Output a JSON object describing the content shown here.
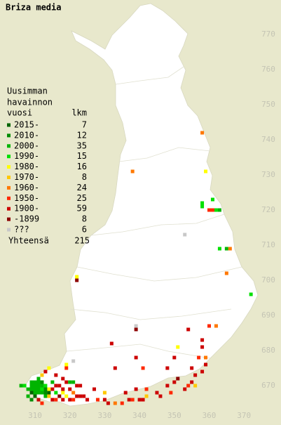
{
  "title": "Briza media",
  "legend": {
    "heading": [
      "Uusimman",
      "havainnon",
      "vuosi"
    ],
    "count_heading": "lkm",
    "entries": [
      {
        "label": "2015-",
        "count": 7,
        "color": "#006400"
      },
      {
        "label": "2010-",
        "count": 12,
        "color": "#008c00"
      },
      {
        "label": "2000-",
        "count": 35,
        "color": "#00b400"
      },
      {
        "label": "1990-",
        "count": 15,
        "color": "#00e000"
      },
      {
        "label": "1980-",
        "count": 16,
        "color": "#ffff00"
      },
      {
        "label": "1970-",
        "count": 8,
        "color": "#ffc800"
      },
      {
        "label": "1960-",
        "count": 24,
        "color": "#ff7800"
      },
      {
        "label": "1950-",
        "count": 25,
        "color": "#ff2800"
      },
      {
        "label": "1900-",
        "count": 59,
        "color": "#cc0000"
      },
      {
        "label": "-1899",
        "count": 8,
        "color": "#8c0000"
      },
      {
        "label": "???",
        "count": 6,
        "color": "#c8c8c8"
      }
    ],
    "total_label": "Yhteensä",
    "total": 215
  },
  "axes": {
    "x_ticks": [
      310,
      320,
      330,
      340,
      350,
      360,
      370
    ],
    "y_ticks": [
      670,
      680,
      690,
      700,
      710,
      720,
      730,
      740,
      750,
      760,
      770
    ]
  },
  "squares": [
    [
      358,
      742,
      6
    ],
    [
      338,
      731,
      6
    ],
    [
      359,
      731,
      4
    ],
    [
      361,
      723,
      3
    ],
    [
      358,
      722,
      3
    ],
    [
      358,
      721,
      3
    ],
    [
      360,
      720,
      7
    ],
    [
      361,
      720,
      7
    ],
    [
      362,
      720,
      3
    ],
    [
      363,
      720,
      2
    ],
    [
      353,
      713,
      10
    ],
    [
      363,
      709,
      3
    ],
    [
      365,
      709,
      2
    ],
    [
      366,
      709,
      6
    ],
    [
      365,
      702,
      6
    ],
    [
      372,
      696,
      3
    ],
    [
      322,
      701,
      4
    ],
    [
      322,
      700,
      9
    ],
    [
      339,
      687,
      10
    ],
    [
      339,
      686,
      9
    ],
    [
      354,
      686,
      8
    ],
    [
      360,
      687,
      7
    ],
    [
      362,
      687,
      6
    ],
    [
      358,
      683,
      8
    ],
    [
      358,
      681,
      8
    ],
    [
      332,
      682,
      8
    ],
    [
      351,
      681,
      4
    ],
    [
      339,
      678,
      8
    ],
    [
      341,
      675,
      7
    ],
    [
      350,
      678,
      8
    ],
    [
      357,
      678,
      7
    ],
    [
      359,
      678,
      6
    ],
    [
      348,
      675,
      8
    ],
    [
      355,
      675,
      8
    ],
    [
      333,
      675,
      8
    ],
    [
      321,
      677,
      10
    ],
    [
      319,
      676,
      4
    ],
    [
      319,
      675,
      7
    ],
    [
      309,
      671,
      2
    ],
    [
      310,
      671,
      2
    ],
    [
      311,
      671,
      2
    ],
    [
      309,
      670,
      2
    ],
    [
      310,
      670,
      2
    ],
    [
      311,
      670,
      2
    ],
    [
      312,
      670,
      2
    ],
    [
      308,
      669,
      2
    ],
    [
      309,
      669,
      2
    ],
    [
      310,
      669,
      2
    ],
    [
      311,
      669,
      2
    ],
    [
      312,
      669,
      3
    ],
    [
      310,
      668,
      2
    ],
    [
      311,
      668,
      2
    ],
    [
      312,
      668,
      2
    ],
    [
      313,
      668,
      1
    ],
    [
      307,
      670,
      3
    ],
    [
      306,
      670,
      2
    ],
    [
      313,
      670,
      3
    ],
    [
      314,
      669,
      4
    ],
    [
      315,
      669,
      8
    ],
    [
      316,
      670,
      8
    ],
    [
      317,
      670,
      8
    ],
    [
      318,
      669,
      8
    ],
    [
      320,
      669,
      8
    ],
    [
      322,
      670,
      8
    ],
    [
      323,
      670,
      8
    ],
    [
      313,
      667,
      2
    ],
    [
      314,
      667,
      5
    ],
    [
      315,
      666,
      8
    ],
    [
      316,
      666,
      7
    ],
    [
      318,
      666,
      8
    ],
    [
      320,
      666,
      8
    ],
    [
      321,
      666,
      7
    ],
    [
      322,
      667,
      8
    ],
    [
      323,
      667,
      8
    ],
    [
      324,
      667,
      8
    ],
    [
      319,
      667,
      4
    ],
    [
      325,
      666,
      8
    ],
    [
      328,
      666,
      7
    ],
    [
      330,
      666,
      8
    ],
    [
      331,
      665,
      8
    ],
    [
      333,
      665,
      6
    ],
    [
      335,
      665,
      7
    ],
    [
      337,
      666,
      8
    ],
    [
      338,
      666,
      7
    ],
    [
      340,
      666,
      8
    ],
    [
      341,
      666,
      8
    ],
    [
      342,
      667,
      5
    ],
    [
      345,
      668,
      8
    ],
    [
      346,
      667,
      8
    ],
    [
      349,
      668,
      7
    ],
    [
      353,
      669,
      8
    ],
    [
      354,
      670,
      7
    ],
    [
      356,
      670,
      5
    ],
    [
      311,
      672,
      2
    ],
    [
      312,
      673,
      5
    ],
    [
      313,
      674,
      8
    ],
    [
      314,
      675,
      4
    ],
    [
      318,
      672,
      8
    ],
    [
      319,
      671,
      8
    ],
    [
      320,
      671,
      2
    ],
    [
      321,
      671,
      2
    ],
    [
      316,
      673,
      8
    ],
    [
      327,
      669,
      8
    ],
    [
      330,
      668,
      5
    ],
    [
      336,
      668,
      8
    ],
    [
      339,
      669,
      8
    ],
    [
      342,
      669,
      7
    ],
    [
      348,
      670,
      8
    ],
    [
      350,
      671,
      8
    ],
    [
      351,
      672,
      9
    ],
    [
      355,
      671,
      8
    ],
    [
      356,
      673,
      8
    ],
    [
      358,
      674,
      8
    ],
    [
      359,
      676,
      8
    ],
    [
      311,
      666,
      8
    ],
    [
      312,
      665,
      7
    ],
    [
      309,
      666,
      1
    ],
    [
      308,
      667,
      2
    ],
    [
      310,
      667,
      0
    ],
    [
      309,
      668,
      0
    ],
    [
      312,
      671,
      1
    ],
    [
      313,
      669,
      1
    ],
    [
      314,
      668,
      0
    ],
    [
      315,
      671,
      2
    ],
    [
      316,
      668,
      3
    ],
    [
      317,
      667,
      9
    ],
    [
      318,
      668,
      4
    ],
    [
      321,
      668,
      6
    ]
  ]
}
